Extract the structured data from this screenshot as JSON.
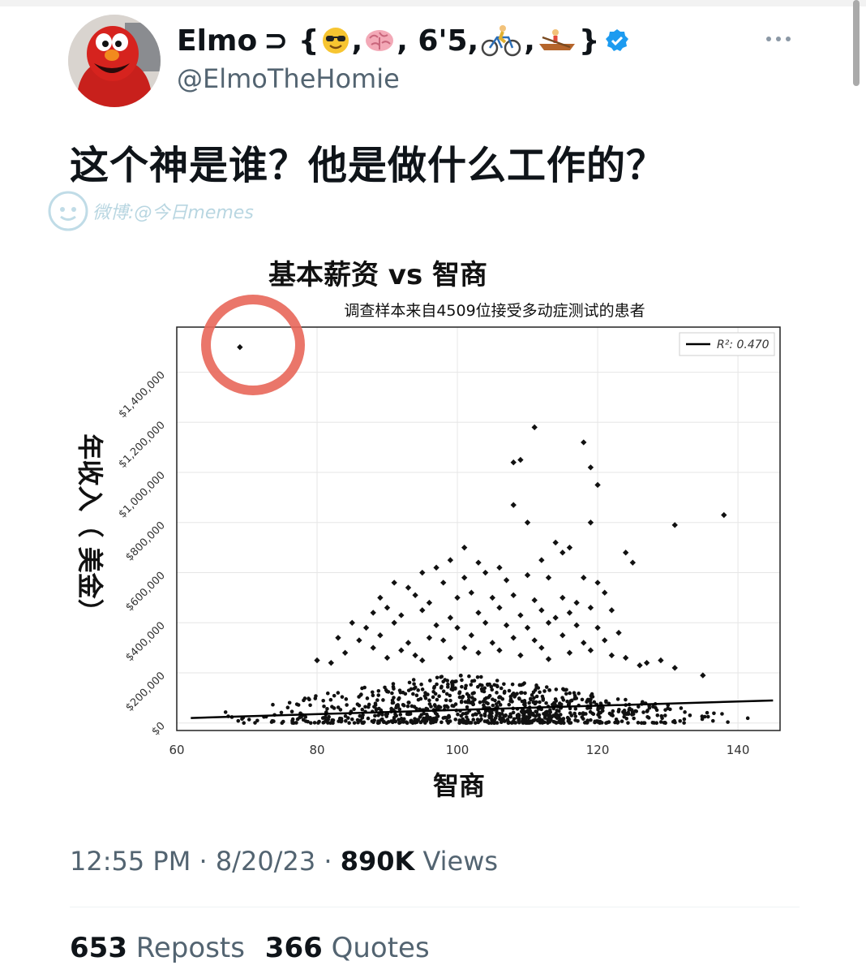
{
  "tweet": {
    "display_name": "Elmo",
    "name_suffix": "⊃ {",
    "name_parts": [
      ", ",
      ", 6'5, ",
      ", ",
      "}"
    ],
    "emoji_icons": [
      "sunglasses-emoji-icon",
      "brain-emoji-icon",
      "bicyclist-emoji-icon",
      "rowing-boat-emoji-icon"
    ],
    "handle": "@ElmoTheHomie",
    "text": "这个神是谁？他是做什么工作的？",
    "watermark": "微博:@今日memes",
    "time": "12:55 PM",
    "date": "8/20/23",
    "views_count": "890K",
    "views_label": "Views",
    "reposts_count": "653",
    "reposts_label": "Reposts",
    "quotes_count": "366",
    "quotes_label": "Quotes"
  },
  "colors": {
    "verified": "#1d9bf0",
    "circle_annotation": "#e8675a",
    "muted_text": "#536471"
  },
  "chart_data": {
    "type": "scatter",
    "title": "基本薪资 vs 智商",
    "subtitle": "调查样本来自4509位接受多动症测试的患者",
    "xlabel": "智商",
    "ylabel": "年收入（ 美金）",
    "xlim": [
      60,
      146
    ],
    "ylim": [
      -30000,
      1580000
    ],
    "x_ticks": [
      60,
      80,
      100,
      120,
      140
    ],
    "x_tick_labels": [
      "60",
      "80",
      "100",
      "120",
      "140"
    ],
    "y_ticks": [
      0,
      200000,
      400000,
      600000,
      800000,
      1000000,
      1200000,
      1400000
    ],
    "y_tick_labels": [
      "$0",
      "$200,000",
      "$400,000",
      "$600,000",
      "$800,000",
      "$1,000,000",
      "$1,200,000",
      "$1,400,000"
    ],
    "legend": "R²: 0.470",
    "legend_position": "top-right",
    "grid": true,
    "trendline": [
      [
        62,
        20000
      ],
      [
        145,
        90000
      ]
    ],
    "dense_band": {
      "x_range": [
        62,
        145
      ],
      "y_low": 0,
      "y_high": 200000,
      "count": 4400
    },
    "points": [
      [
        69,
        1500000
      ],
      [
        108,
        1040000
      ],
      [
        109,
        1050000
      ],
      [
        111,
        1180000
      ],
      [
        118,
        1120000
      ],
      [
        119,
        1020000
      ],
      [
        120,
        950000
      ],
      [
        108,
        870000
      ],
      [
        110,
        800000
      ],
      [
        119,
        800000
      ],
      [
        131,
        790000
      ],
      [
        138,
        830000
      ],
      [
        101,
        700000
      ],
      [
        99,
        650000
      ],
      [
        114,
        720000
      ],
      [
        115,
        680000
      ],
      [
        116,
        700000
      ],
      [
        124,
        680000
      ],
      [
        125,
        640000
      ],
      [
        95,
        600000
      ],
      [
        97,
        620000
      ],
      [
        103,
        640000
      ],
      [
        106,
        620000
      ],
      [
        112,
        650000
      ],
      [
        104,
        600000
      ],
      [
        91,
        560000
      ],
      [
        93,
        540000
      ],
      [
        98,
        560000
      ],
      [
        101,
        580000
      ],
      [
        107,
        570000
      ],
      [
        110,
        590000
      ],
      [
        113,
        580000
      ],
      [
        118,
        580000
      ],
      [
        120,
        560000
      ],
      [
        89,
        500000
      ],
      [
        94,
        510000
      ],
      [
        96,
        480000
      ],
      [
        100,
        500000
      ],
      [
        102,
        520000
      ],
      [
        105,
        500000
      ],
      [
        108,
        510000
      ],
      [
        111,
        490000
      ],
      [
        115,
        500000
      ],
      [
        117,
        480000
      ],
      [
        121,
        520000
      ],
      [
        88,
        440000
      ],
      [
        90,
        460000
      ],
      [
        92,
        430000
      ],
      [
        95,
        450000
      ],
      [
        99,
        420000
      ],
      [
        103,
        440000
      ],
      [
        106,
        460000
      ],
      [
        109,
        430000
      ],
      [
        112,
        450000
      ],
      [
        114,
        420000
      ],
      [
        116,
        440000
      ],
      [
        119,
        460000
      ],
      [
        122,
        450000
      ],
      [
        85,
        400000
      ],
      [
        87,
        380000
      ],
      [
        91,
        400000
      ],
      [
        97,
        390000
      ],
      [
        100,
        380000
      ],
      [
        104,
        400000
      ],
      [
        107,
        390000
      ],
      [
        110,
        380000
      ],
      [
        113,
        400000
      ],
      [
        117,
        390000
      ],
      [
        120,
        380000
      ],
      [
        123,
        360000
      ],
      [
        83,
        340000
      ],
      [
        86,
        330000
      ],
      [
        89,
        350000
      ],
      [
        93,
        320000
      ],
      [
        96,
        340000
      ],
      [
        98,
        330000
      ],
      [
        102,
        350000
      ],
      [
        105,
        320000
      ],
      [
        108,
        340000
      ],
      [
        111,
        330000
      ],
      [
        115,
        350000
      ],
      [
        118,
        320000
      ],
      [
        121,
        330000
      ],
      [
        84,
        280000
      ],
      [
        88,
        300000
      ],
      [
        92,
        290000
      ],
      [
        94,
        270000
      ],
      [
        101,
        300000
      ],
      [
        103,
        280000
      ],
      [
        106,
        290000
      ],
      [
        109,
        270000
      ],
      [
        112,
        300000
      ],
      [
        116,
        280000
      ],
      [
        119,
        290000
      ],
      [
        124,
        260000
      ],
      [
        127,
        240000
      ],
      [
        129,
        250000
      ],
      [
        131,
        220000
      ],
      [
        135,
        190000
      ],
      [
        80,
        250000
      ],
      [
        82,
        240000
      ],
      [
        90,
        260000
      ],
      [
        95,
        250000
      ],
      [
        99,
        260000
      ],
      [
        113,
        255000
      ],
      [
        122,
        270000
      ],
      [
        126,
        230000
      ]
    ]
  }
}
